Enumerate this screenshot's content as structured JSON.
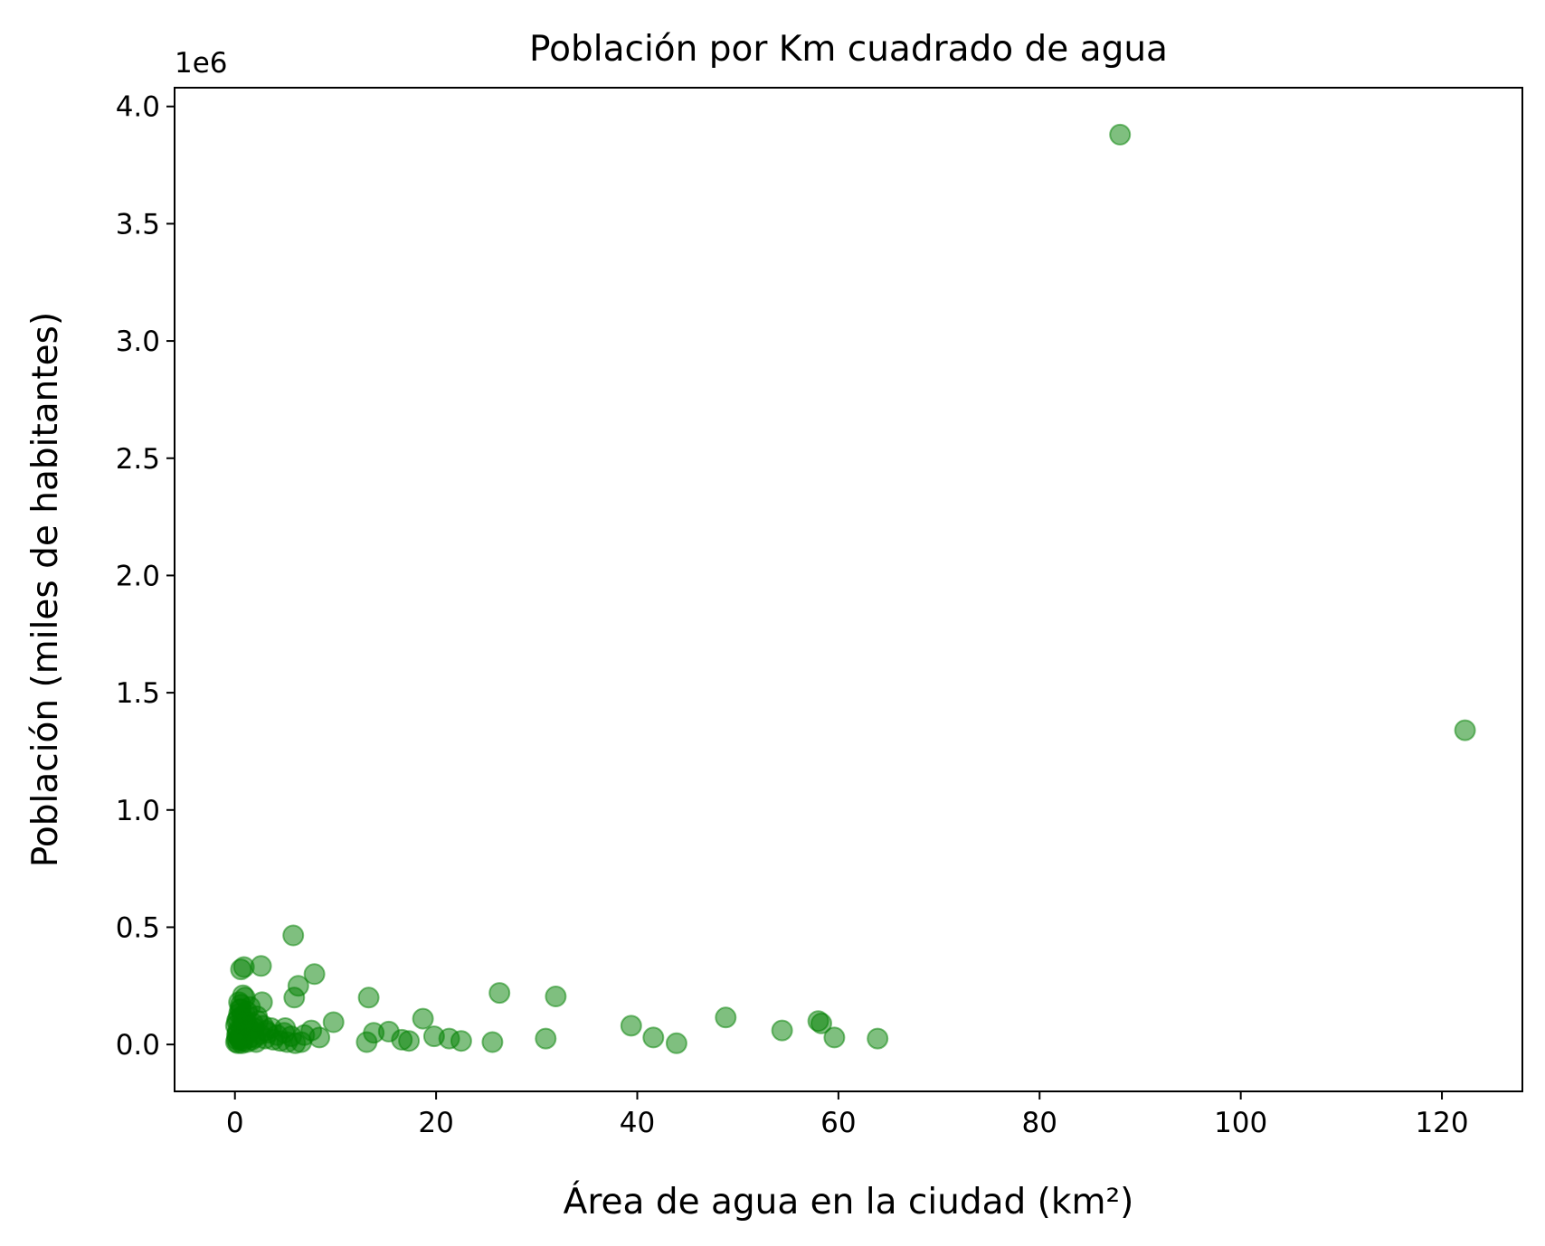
{
  "chart_data": {
    "type": "scatter",
    "title": "Población por Km cuadrado de agua",
    "xlabel": "Área de agua en la ciudad (km²)",
    "ylabel": "Población (miles de habitantes)",
    "y_offset_text": "1e6",
    "xlim": [
      -6,
      128
    ],
    "ylim": [
      -200000,
      4080000
    ],
    "x_ticks": [
      0,
      20,
      40,
      60,
      80,
      100,
      120
    ],
    "x_tick_labels": [
      "0",
      "20",
      "40",
      "60",
      "80",
      "100",
      "120"
    ],
    "y_ticks": [
      0,
      500000,
      1000000,
      1500000,
      2000000,
      2500000,
      3000000,
      3500000,
      4000000
    ],
    "y_tick_labels": [
      "0.0",
      "0.5",
      "1.0",
      "1.5",
      "2.0",
      "2.5",
      "3.0",
      "3.5",
      "4.0"
    ],
    "grid": false,
    "marker_color": "#008000",
    "marker_alpha": 0.5,
    "series": [
      {
        "x": [
          88.0,
          122.3,
          5.8,
          0.6,
          0.9,
          2.6,
          7.9,
          6.3,
          5.9,
          26.3,
          31.9,
          13.3,
          48.8,
          58.0,
          58.3,
          39.4,
          54.4,
          18.7,
          9.8,
          7.6,
          15.3,
          13.8,
          63.9,
          59.6,
          41.6,
          30.9,
          19.8,
          21.3,
          16.6,
          17.3,
          13.1,
          22.5,
          25.6,
          43.9,
          8.4,
          6.9,
          5.6,
          4.9,
          4.2,
          3.6,
          3.1,
          2.7,
          2.2,
          1.8,
          1.5,
          1.2,
          1.0,
          0.8,
          0.6,
          0.5,
          0.4,
          0.3,
          0.2,
          0.1,
          0.7,
          1.1,
          1.3,
          1.6,
          0.9,
          0.4,
          0.2,
          0.3,
          0.6,
          1.0,
          1.4,
          0.5,
          0.8,
          1.2,
          0.7,
          0.3,
          2.0,
          2.5,
          3.0,
          3.8,
          4.5,
          5.2,
          6.0,
          6.6,
          1.9,
          2.3,
          2.8,
          0.4,
          0.6,
          0.9,
          1.2,
          0.2,
          0.5,
          1.5,
          1.7,
          2.1,
          0.1,
          0.3,
          0.8,
          1.0,
          5.0,
          3.3
        ],
        "y": [
          3880000,
          1340000,
          465000,
          320000,
          330000,
          335000,
          300000,
          250000,
          200000,
          220000,
          205000,
          200000,
          115000,
          100000,
          90000,
          80000,
          60000,
          110000,
          95000,
          60000,
          55000,
          50000,
          25000,
          30000,
          30000,
          25000,
          35000,
          25000,
          20000,
          15000,
          10000,
          15000,
          10000,
          5000,
          30000,
          40000,
          35000,
          50000,
          40000,
          70000,
          60000,
          180000,
          120000,
          90000,
          160000,
          140000,
          200000,
          210000,
          170000,
          150000,
          130000,
          110000,
          100000,
          80000,
          120000,
          95000,
          75000,
          60000,
          40000,
          30000,
          20000,
          50000,
          65000,
          85000,
          55000,
          25000,
          15000,
          10000,
          5000,
          5000,
          30000,
          45000,
          25000,
          20000,
          15000,
          10000,
          5000,
          10000,
          70000,
          100000,
          80000,
          180000,
          150000,
          100000,
          60000,
          40000,
          20000,
          30000,
          20000,
          10000,
          10000,
          60000,
          90000,
          130000,
          70000,
          50000
        ]
      }
    ]
  }
}
